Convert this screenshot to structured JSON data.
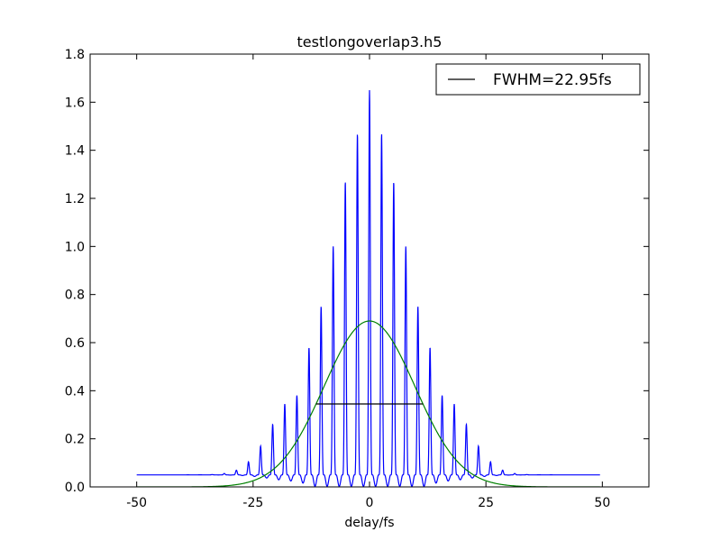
{
  "chart_data": {
    "type": "line",
    "title": "testlongoverlap3.h5",
    "xlabel": "delay/fs",
    "ylabel": "",
    "xlim": [
      -60,
      60
    ],
    "ylim": [
      0,
      1.8
    ],
    "grid": false,
    "legend_position": "top-right",
    "x_ticks": [
      -50,
      -25,
      0,
      25,
      50
    ],
    "x_tick_labels": [
      "-50",
      "-25",
      "0",
      "25",
      "50"
    ],
    "y_ticks": [
      0,
      0.2,
      0.4,
      0.6,
      0.8,
      1.0,
      1.2,
      1.4,
      1.6,
      1.8
    ],
    "y_tick_labels": [
      "0.0",
      "0.2",
      "0.4",
      "0.6",
      "0.8",
      "1.0",
      "1.2",
      "1.4",
      "1.6",
      "1.8"
    ],
    "series": [
      {
        "name": "",
        "style": "line",
        "color": "#0000ff",
        "x_range": [
          -50,
          49.5
        ],
        "baseline": 0.05,
        "carrier_period_fs": 2.6,
        "peak_values": [
          {
            "x": -15.6,
            "y": 0.38
          },
          {
            "x": -13.0,
            "y": 0.58
          },
          {
            "x": -10.4,
            "y": 0.75
          },
          {
            "x": -7.8,
            "y": 1.0
          },
          {
            "x": -5.2,
            "y": 1.27
          },
          {
            "x": -2.6,
            "y": 1.47
          },
          {
            "x": 0.0,
            "y": 1.65
          },
          {
            "x": 2.6,
            "y": 1.47
          },
          {
            "x": 5.2,
            "y": 1.27
          },
          {
            "x": 7.8,
            "y": 1.0
          },
          {
            "x": 10.4,
            "y": 0.75
          },
          {
            "x": 13.0,
            "y": 0.58
          },
          {
            "x": 15.6,
            "y": 0.38
          }
        ]
      },
      {
        "name": "",
        "style": "line",
        "color": "#008000",
        "model": "gaussian",
        "amplitude": 0.69,
        "center": 0,
        "fwhm": 22.95,
        "x_range": [
          -50,
          49.5
        ]
      },
      {
        "name": "FWHM=22.95fs",
        "style": "line",
        "color": "#000000",
        "x": [
          -11.475,
          11.475
        ],
        "y": [
          0.345,
          0.345
        ]
      }
    ],
    "legend": [
      "FWHM=22.95fs"
    ]
  }
}
